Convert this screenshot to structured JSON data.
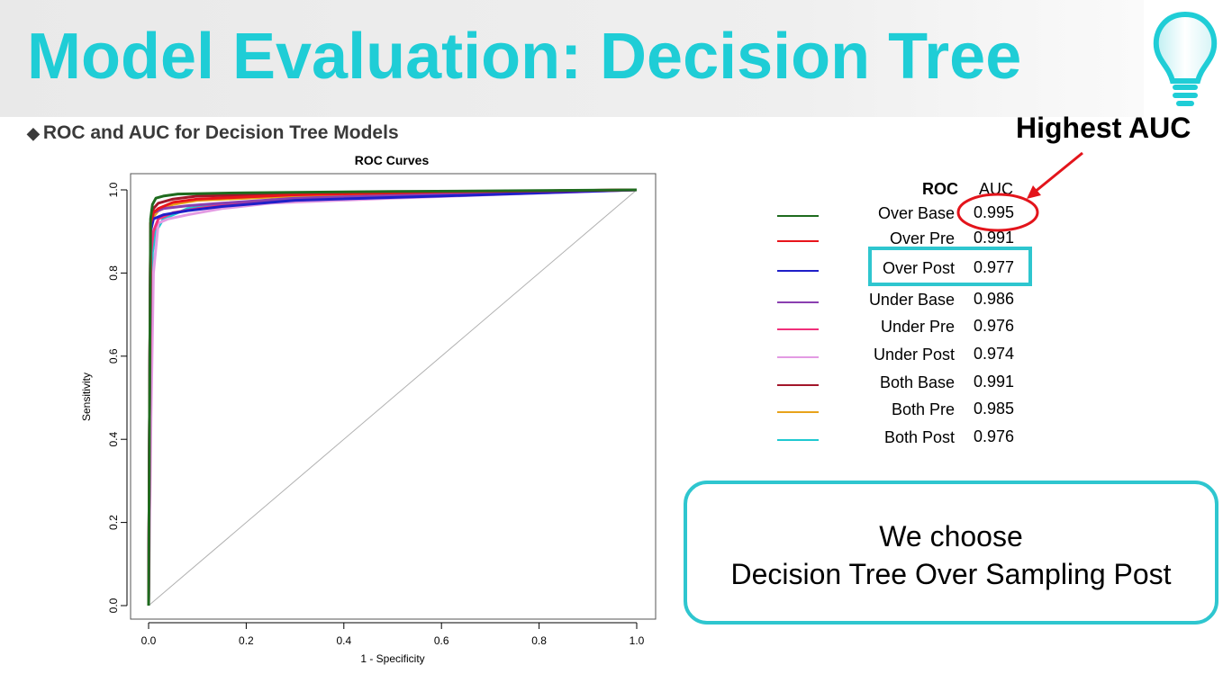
{
  "slide": {
    "title": "Model Evaluation: Decision Tree",
    "subtitle": "ROC and AUC for Decision Tree Models",
    "highlight_label": "Highest AUC",
    "conclusion_line1": "We choose",
    "conclusion_line2": "Decision Tree Over Sampling  Post",
    "accent_color": "#1fcdd6",
    "highlight_circle_color": "#e3141b",
    "highlight_box_color": "#2ec6cf"
  },
  "legend": {
    "header_roc": "ROC",
    "header_auc": "AUC",
    "items": [
      {
        "name": "Over Base",
        "auc": "0.995",
        "color": "#1e6b1e"
      },
      {
        "name": "Over Pre",
        "auc": "0.991",
        "color": "#e8141b"
      },
      {
        "name": "Over Post",
        "auc": "0.977",
        "color": "#1f1fc8"
      },
      {
        "name": "Under Base",
        "auc": "0.986",
        "color": "#8a3fb0"
      },
      {
        "name": "Under Pre",
        "auc": "0.976",
        "color": "#f0307a"
      },
      {
        "name": "Under Post",
        "auc": "0.974",
        "color": "#e39be3"
      },
      {
        "name": "Both Base",
        "auc": "0.991",
        "color": "#a3162a"
      },
      {
        "name": "Both Pre",
        "auc": "0.985",
        "color": "#e8a31a"
      },
      {
        "name": "Both Post",
        "auc": "0.976",
        "color": "#1fc9d1"
      }
    ]
  },
  "chart_data": {
    "type": "line",
    "title": "ROC Curves",
    "xlabel": "1 - Specificity",
    "ylabel": "Sensitivity",
    "xlim": [
      0,
      1
    ],
    "ylim": [
      0,
      1
    ],
    "xticks": [
      "0.0",
      "0.2",
      "0.4",
      "0.6",
      "0.8",
      "1.0"
    ],
    "yticks": [
      "0.0",
      "0.2",
      "0.4",
      "0.6",
      "0.8",
      "1.0"
    ],
    "reference_line": {
      "x": [
        0,
        1
      ],
      "y": [
        0,
        1
      ],
      "color": "#b0b0b0"
    },
    "series": [
      {
        "name": "Over Base",
        "color": "#1e6b1e",
        "x": [
          0,
          0.002,
          0.004,
          0.008,
          0.015,
          0.03,
          0.06,
          0.2,
          0.5,
          1.0
        ],
        "y": [
          0,
          0.5,
          0.93,
          0.965,
          0.98,
          0.985,
          0.99,
          0.993,
          0.996,
          1.0
        ]
      },
      {
        "name": "Over Pre",
        "color": "#e8141b",
        "x": [
          0,
          0.002,
          0.004,
          0.01,
          0.02,
          0.05,
          0.1,
          0.3,
          0.6,
          1.0
        ],
        "y": [
          0,
          0.5,
          0.92,
          0.945,
          0.955,
          0.97,
          0.978,
          0.988,
          0.995,
          1.0
        ]
      },
      {
        "name": "Over Post",
        "color": "#1f1fc8",
        "x": [
          0,
          0.002,
          0.004,
          0.01,
          0.03,
          0.08,
          0.15,
          0.3,
          0.6,
          1.0
        ],
        "y": [
          0,
          0.5,
          0.9,
          0.93,
          0.94,
          0.95,
          0.96,
          0.975,
          0.985,
          1.0
        ]
      },
      {
        "name": "Under Base",
        "color": "#8a3fb0",
        "x": [
          0,
          0.002,
          0.004,
          0.01,
          0.03,
          0.08,
          0.15,
          0.3,
          0.6,
          1.0
        ],
        "y": [
          0,
          0.5,
          0.9,
          0.945,
          0.955,
          0.962,
          0.968,
          0.98,
          0.99,
          1.0
        ]
      },
      {
        "name": "Under Pre",
        "color": "#f0307a",
        "x": [
          0,
          0.002,
          0.005,
          0.01,
          0.02,
          0.05,
          0.1,
          0.2,
          0.5,
          1.0
        ],
        "y": [
          0,
          0.45,
          0.85,
          0.9,
          0.93,
          0.945,
          0.955,
          0.97,
          0.985,
          1.0
        ]
      },
      {
        "name": "Under Post",
        "color": "#e39be3",
        "x": [
          0,
          0.005,
          0.01,
          0.02,
          0.04,
          0.08,
          0.15,
          0.25,
          0.5,
          1.0
        ],
        "y": [
          0,
          0.45,
          0.8,
          0.92,
          0.93,
          0.94,
          0.955,
          0.968,
          0.98,
          1.0
        ]
      },
      {
        "name": "Both Base",
        "color": "#a3162a",
        "x": [
          0,
          0.002,
          0.004,
          0.01,
          0.02,
          0.05,
          0.1,
          0.3,
          0.6,
          1.0
        ],
        "y": [
          0,
          0.5,
          0.92,
          0.955,
          0.968,
          0.978,
          0.985,
          0.99,
          0.995,
          1.0
        ]
      },
      {
        "name": "Both Pre",
        "color": "#e8a31a",
        "x": [
          0,
          0.002,
          0.004,
          0.01,
          0.02,
          0.05,
          0.1,
          0.3,
          0.6,
          1.0
        ],
        "y": [
          0,
          0.5,
          0.9,
          0.935,
          0.95,
          0.965,
          0.975,
          0.985,
          0.993,
          1.0
        ]
      },
      {
        "name": "Both Post",
        "color": "#1fc9d1",
        "x": [
          0,
          0.002,
          0.004,
          0.008,
          0.015,
          0.03,
          0.08,
          0.15,
          0.3,
          0.6,
          1.0
        ],
        "y": [
          0,
          0.28,
          0.55,
          0.85,
          0.9,
          0.93,
          0.955,
          0.965,
          0.975,
          0.985,
          1.0
        ]
      }
    ]
  }
}
